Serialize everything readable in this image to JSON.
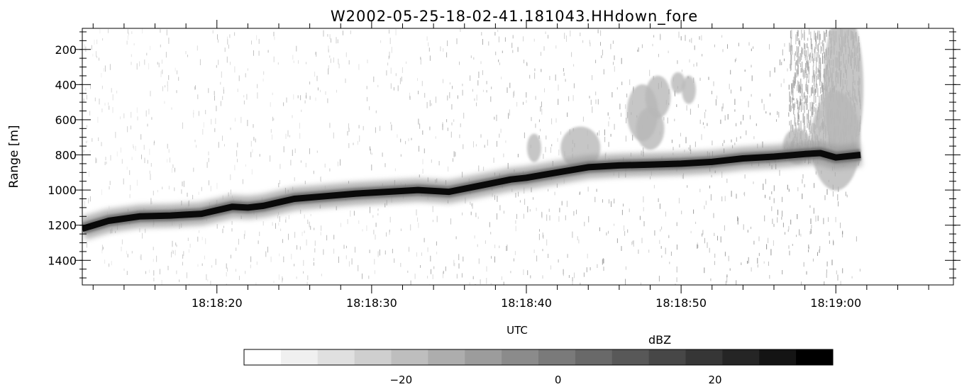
{
  "chart_data": {
    "type": "heatmap",
    "title": "W2002-05-25-18-02-41.181043.HHdown_fore",
    "xlabel": "UTC",
    "ylabel": "Range [m]",
    "x_ticks": [
      "18:18:20",
      "18:18:30",
      "18:18:40",
      "18:18:50",
      "18:19:00"
    ],
    "x_tick_seconds": [
      20,
      30,
      40,
      50,
      60
    ],
    "x_range_seconds_after_18_18_00": [
      11.3,
      67.6
    ],
    "data_end_seconds": 61.6,
    "y_ticks": [
      200,
      400,
      600,
      800,
      1000,
      1200,
      1400
    ],
    "ylim": [
      80,
      1540
    ],
    "y_inverted": true,
    "surface_echo": {
      "description_series": "strong return range",
      "x": [
        "18:18:11",
        "18:18:13",
        "18:18:15",
        "18:18:17",
        "18:18:19",
        "18:18:21",
        "18:18:22",
        "18:18:23",
        "18:18:25",
        "18:18:27",
        "18:18:29",
        "18:18:31",
        "18:18:33",
        "18:18:35",
        "18:18:37",
        "18:18:39",
        "18:18:40",
        "18:18:42",
        "18:18:44",
        "18:18:46",
        "18:18:48",
        "18:18:50",
        "18:18:52",
        "18:18:54",
        "18:18:56",
        "18:18:58",
        "18:18:59",
        "18:19:00",
        "18:19:01"
      ],
      "range_m": [
        1220,
        1175,
        1150,
        1145,
        1135,
        1095,
        1100,
        1090,
        1050,
        1035,
        1020,
        1010,
        1000,
        1010,
        975,
        940,
        930,
        900,
        870,
        860,
        855,
        850,
        840,
        820,
        810,
        795,
        790,
        815,
        800
      ]
    },
    "colorbar": {
      "label": "dBZ",
      "ticks": [
        -20,
        0,
        20
      ],
      "range": [
        -40,
        35
      ],
      "colors": [
        "#ffffff",
        "#f0f0f0",
        "#e0e0e0",
        "#cfcfcf",
        "#bebebe",
        "#adadad",
        "#9c9c9c",
        "#8b8b8b",
        "#7a7a7a",
        "#696969",
        "#585858",
        "#474747",
        "#363636",
        "#252525",
        "#141414",
        "#000000"
      ]
    }
  }
}
